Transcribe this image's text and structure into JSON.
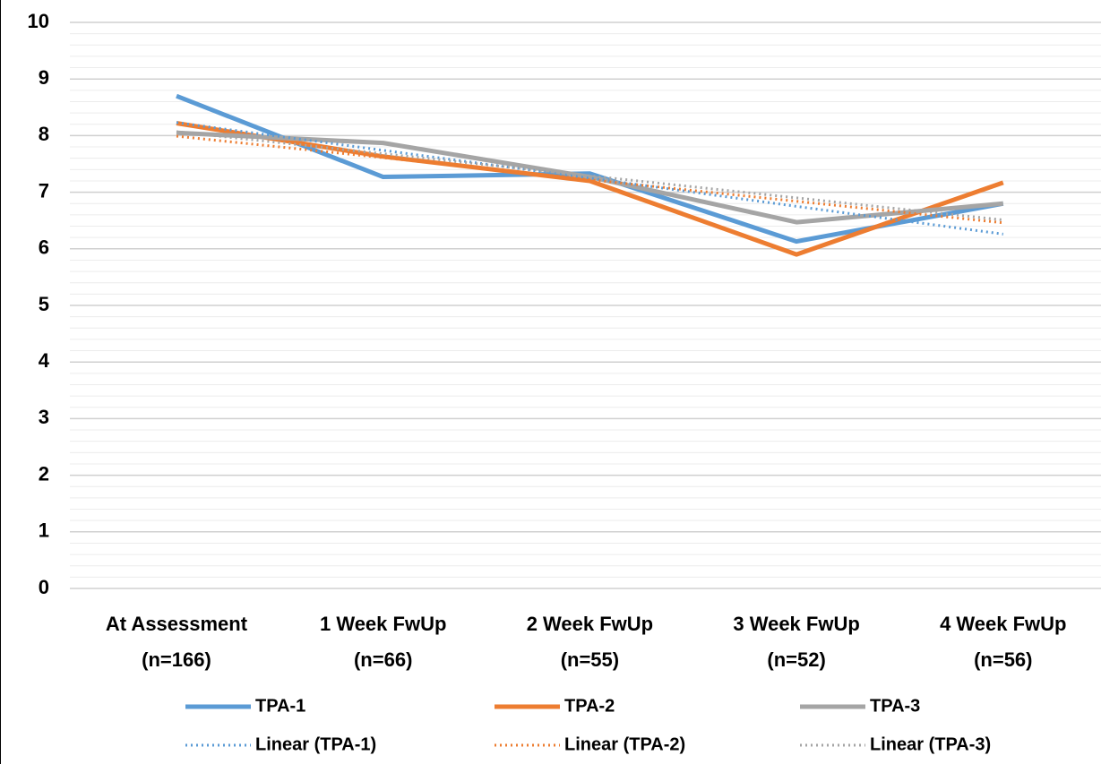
{
  "chart_data": {
    "type": "line",
    "categories": [
      [
        "At Assessment",
        "(n=166)"
      ],
      [
        "1 Week FwUp",
        "(n=66)"
      ],
      [
        "2 Week FwUp",
        "(n=55)"
      ],
      [
        "3 Week FwUp",
        "(n=52)"
      ],
      [
        "4 Week FwUp",
        "(n=56)"
      ]
    ],
    "series": [
      {
        "name": "TPA-1",
        "color": "#5b9bd5",
        "style": "solid",
        "values": [
          8.7,
          7.27,
          7.33,
          6.13,
          6.8
        ]
      },
      {
        "name": "TPA-2",
        "color": "#ed7d31",
        "style": "solid",
        "values": [
          8.22,
          7.63,
          7.2,
          5.9,
          7.17
        ]
      },
      {
        "name": "TPA-3",
        "color": "#a5a5a5",
        "style": "solid",
        "values": [
          8.05,
          7.87,
          7.27,
          6.47,
          6.8
        ]
      },
      {
        "name": "Linear (TPA-1)",
        "color": "#5b9bd5",
        "style": "dotted",
        "values": [
          8.23,
          7.74,
          7.25,
          6.75,
          6.26
        ]
      },
      {
        "name": "Linear (TPA-2)",
        "color": "#ed7d31",
        "style": "dotted",
        "values": [
          7.99,
          7.61,
          7.22,
          6.84,
          6.46
        ]
      },
      {
        "name": "Linear (TPA-3)",
        "color": "#a5a5a5",
        "style": "dotted",
        "values": [
          8.07,
          7.68,
          7.29,
          6.9,
          6.51
        ]
      }
    ],
    "ylim": [
      0,
      10
    ],
    "yticks": [
      0,
      1,
      2,
      3,
      4,
      5,
      6,
      7,
      8,
      9,
      10
    ],
    "minor_ytick_step": 0.2,
    "grid": true,
    "legend": "bottom"
  }
}
